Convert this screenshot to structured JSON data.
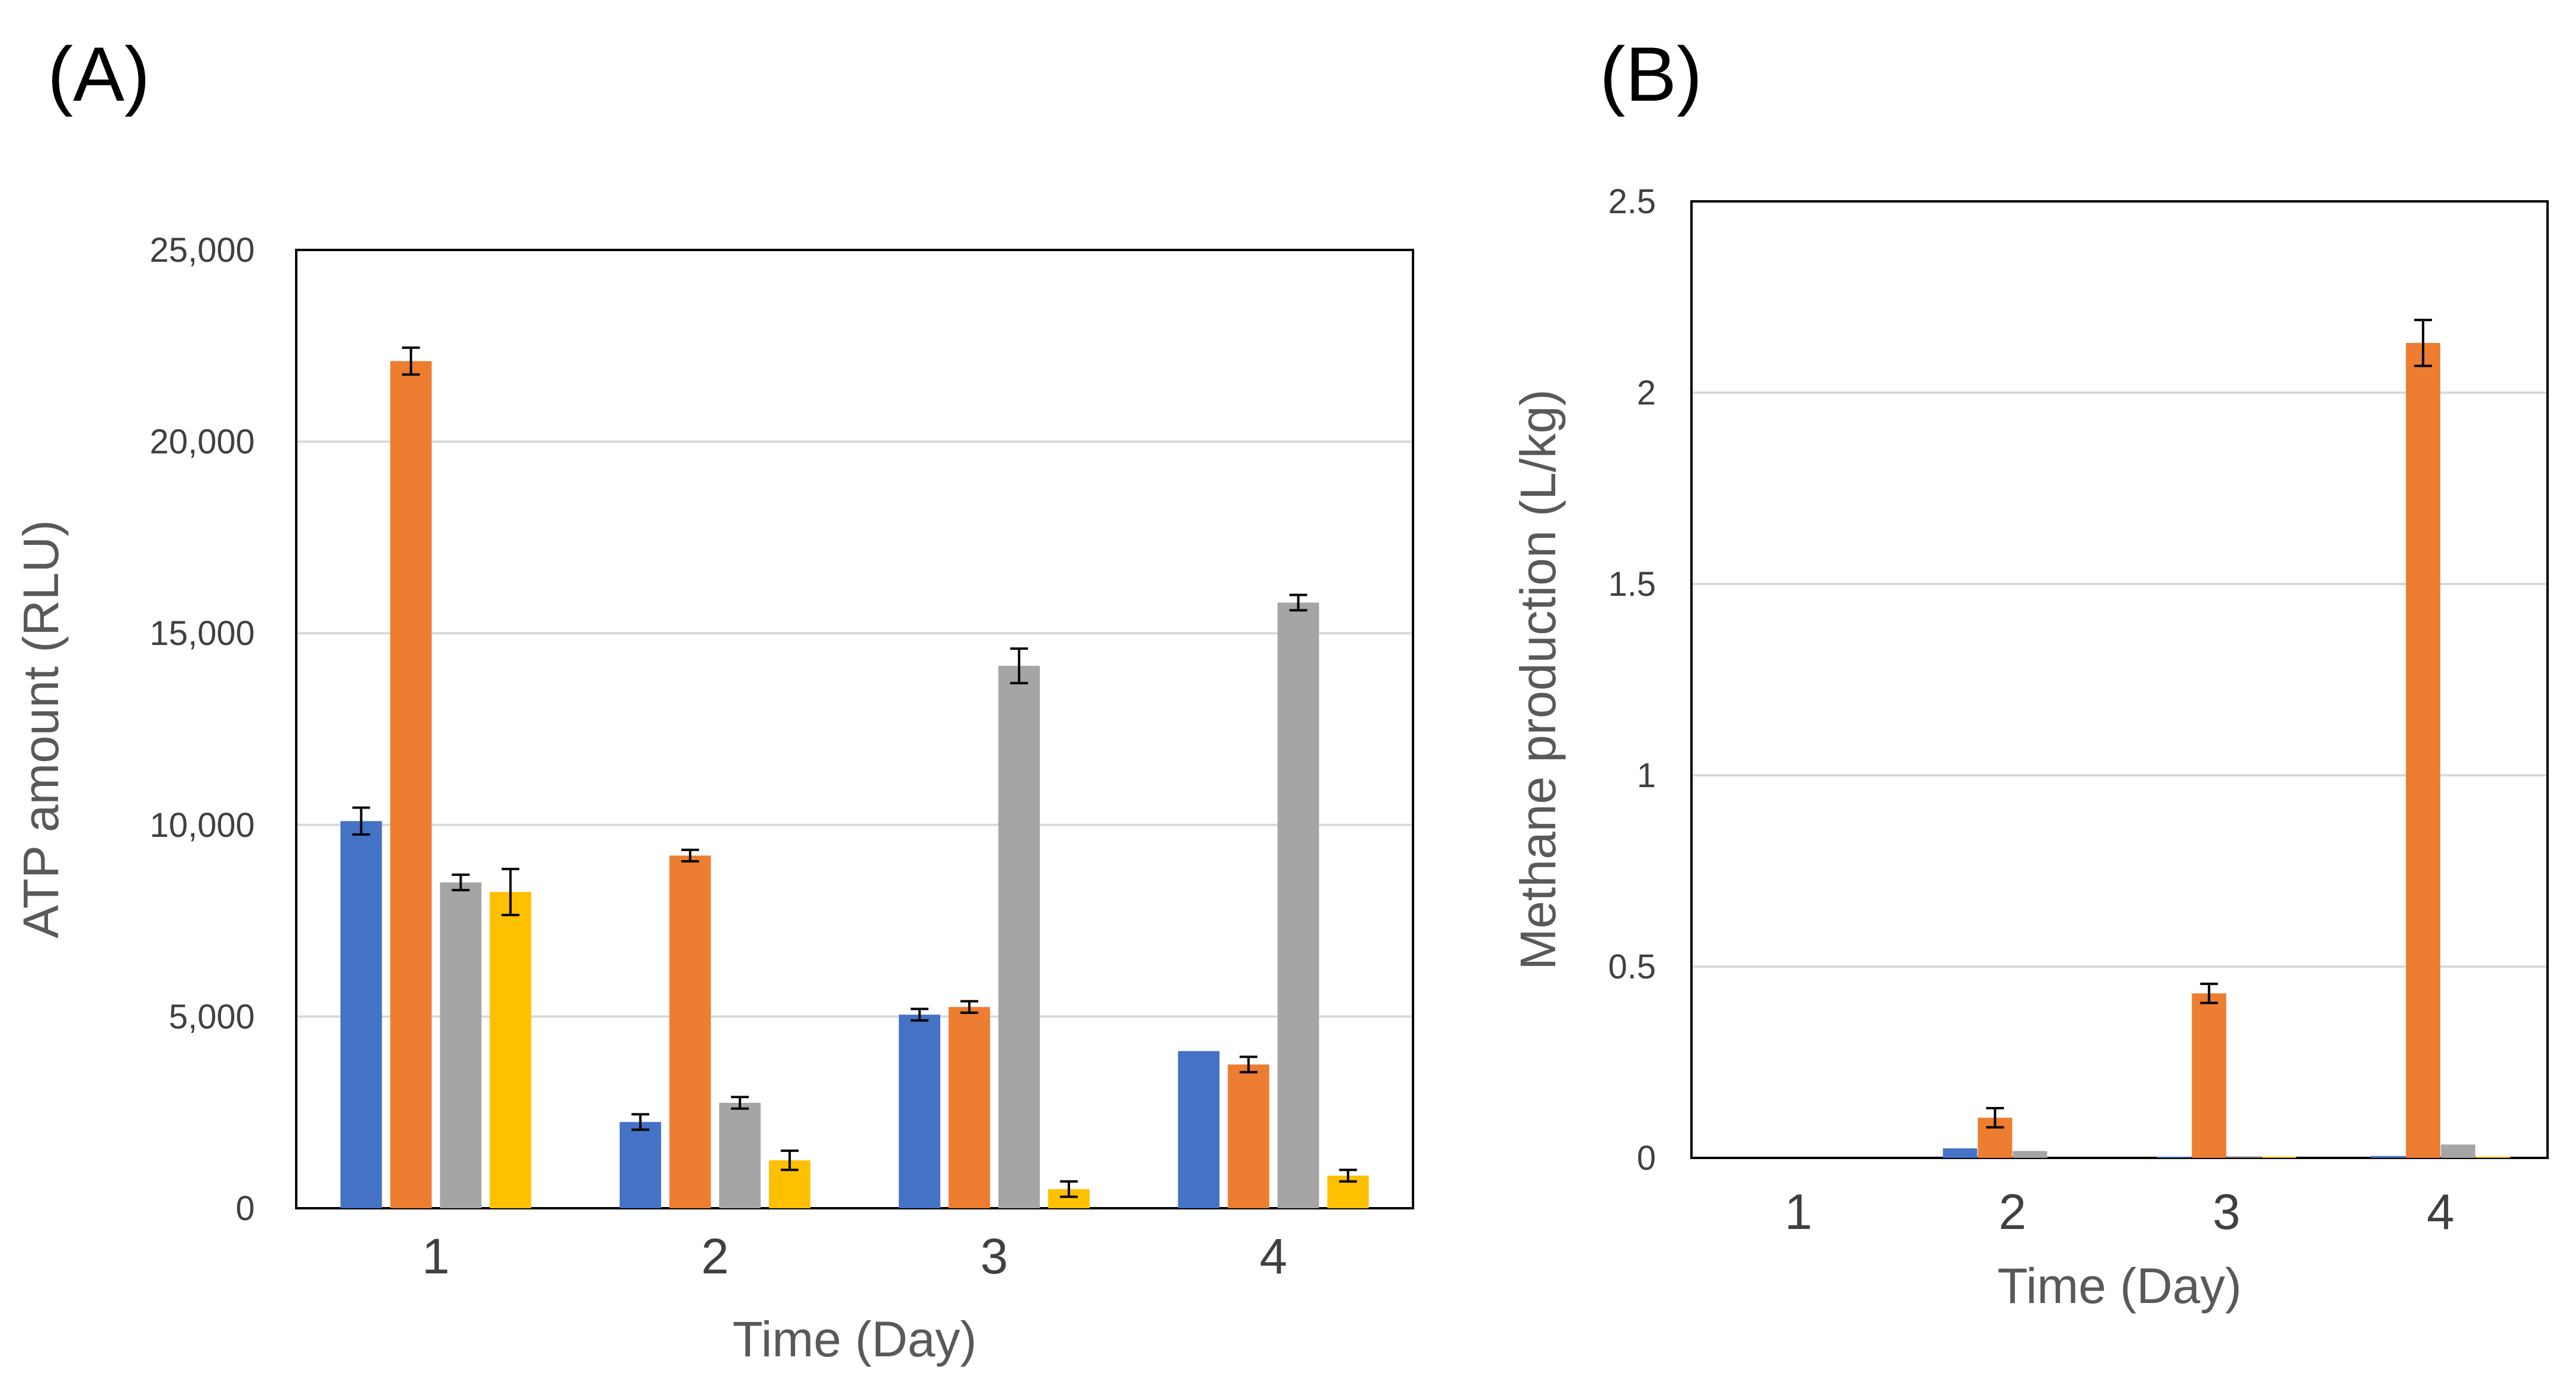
{
  "chart_data": [
    {
      "panel": "(A)",
      "type": "bar",
      "categories": [
        "1",
        "2",
        "3",
        "4"
      ],
      "xlabel": "Time (Day)",
      "ylabel": "ATP amount (RLU)",
      "ylim": [
        0,
        25000
      ],
      "yticks": [
        0,
        5000,
        10000,
        15000,
        20000,
        25000
      ],
      "ytick_labels": [
        "0",
        "5,000",
        "10,000",
        "15,000",
        "20,000",
        "25,000"
      ],
      "grid": true,
      "legend": null,
      "series": [
        {
          "color": "#4472C4",
          "values": [
            10100,
            2250,
            5050,
            4100
          ],
          "errors": [
            350,
            200,
            150,
            0
          ]
        },
        {
          "color": "#ED7D31",
          "values": [
            22100,
            9200,
            5250,
            3750
          ],
          "errors": [
            350,
            150,
            150,
            200
          ]
        },
        {
          "color": "#A5A5A5",
          "values": [
            8500,
            2750,
            14150,
            15800
          ],
          "errors": [
            200,
            150,
            450,
            200
          ]
        },
        {
          "color": "#FFC000",
          "values": [
            8250,
            1250,
            500,
            850
          ],
          "errors": [
            600,
            250,
            200,
            150
          ]
        }
      ]
    },
    {
      "panel": "(B)",
      "type": "bar",
      "categories": [
        "1",
        "2",
        "3",
        "4"
      ],
      "xlabel": "Time (Day)",
      "ylabel": "Methane production (L/kg)",
      "ylim": [
        0,
        2.5
      ],
      "yticks": [
        0,
        0.5,
        1,
        1.5,
        2,
        2.5
      ],
      "ytick_labels": [
        "0",
        "0.5",
        "1",
        "1.5",
        "2",
        "2.5"
      ],
      "grid": true,
      "legend": null,
      "series": [
        {
          "color": "#4472C4",
          "values": [
            0,
            0.025,
            0.003,
            0.005
          ],
          "errors": [
            0,
            0,
            0,
            0
          ]
        },
        {
          "color": "#ED7D31",
          "values": [
            0,
            0.105,
            0.43,
            2.13
          ],
          "errors": [
            0,
            0.025,
            0.025,
            0.06
          ]
        },
        {
          "color": "#A5A5A5",
          "values": [
            0,
            0.018,
            0.002,
            0.035
          ],
          "errors": [
            0,
            0,
            0,
            0
          ]
        },
        {
          "color": "#FFC000",
          "values": [
            0,
            0,
            0.003,
            0.003
          ],
          "errors": [
            0,
            0,
            0,
            0
          ]
        }
      ]
    }
  ]
}
